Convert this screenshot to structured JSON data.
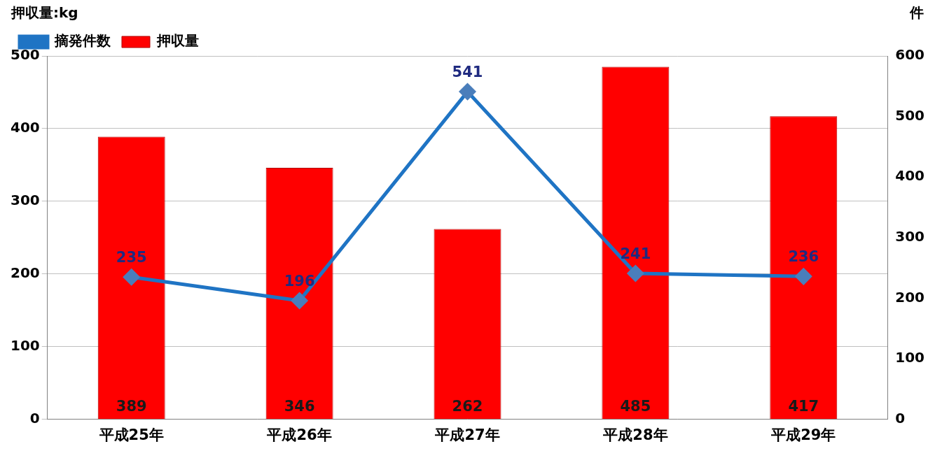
{
  "chart_data": {
    "type": "bar",
    "categories": [
      "平成25年",
      "平成26年",
      "平成27年",
      "平成28年",
      "平成29年"
    ],
    "series": [
      {
        "name": "押収量",
        "type": "bar",
        "color": "#ff0000",
        "values": [
          389,
          346,
          262,
          485,
          417
        ]
      },
      {
        "name": "摘発件数",
        "type": "line",
        "color": "#1f74c4",
        "marker": "diamond",
        "axis": "y2",
        "values": [
          235,
          196,
          541,
          241,
          236
        ]
      }
    ],
    "y_label": "押収量:kg",
    "y2_label": "件",
    "ylim": [
      0,
      500
    ],
    "yticks": [
      0,
      100,
      200,
      300,
      400,
      500
    ],
    "y2lim": [
      0,
      600
    ],
    "y2ticks": [
      0,
      100,
      200,
      300,
      400,
      500,
      600
    ],
    "grid": true,
    "legend": "top-left",
    "data_labels": true
  }
}
